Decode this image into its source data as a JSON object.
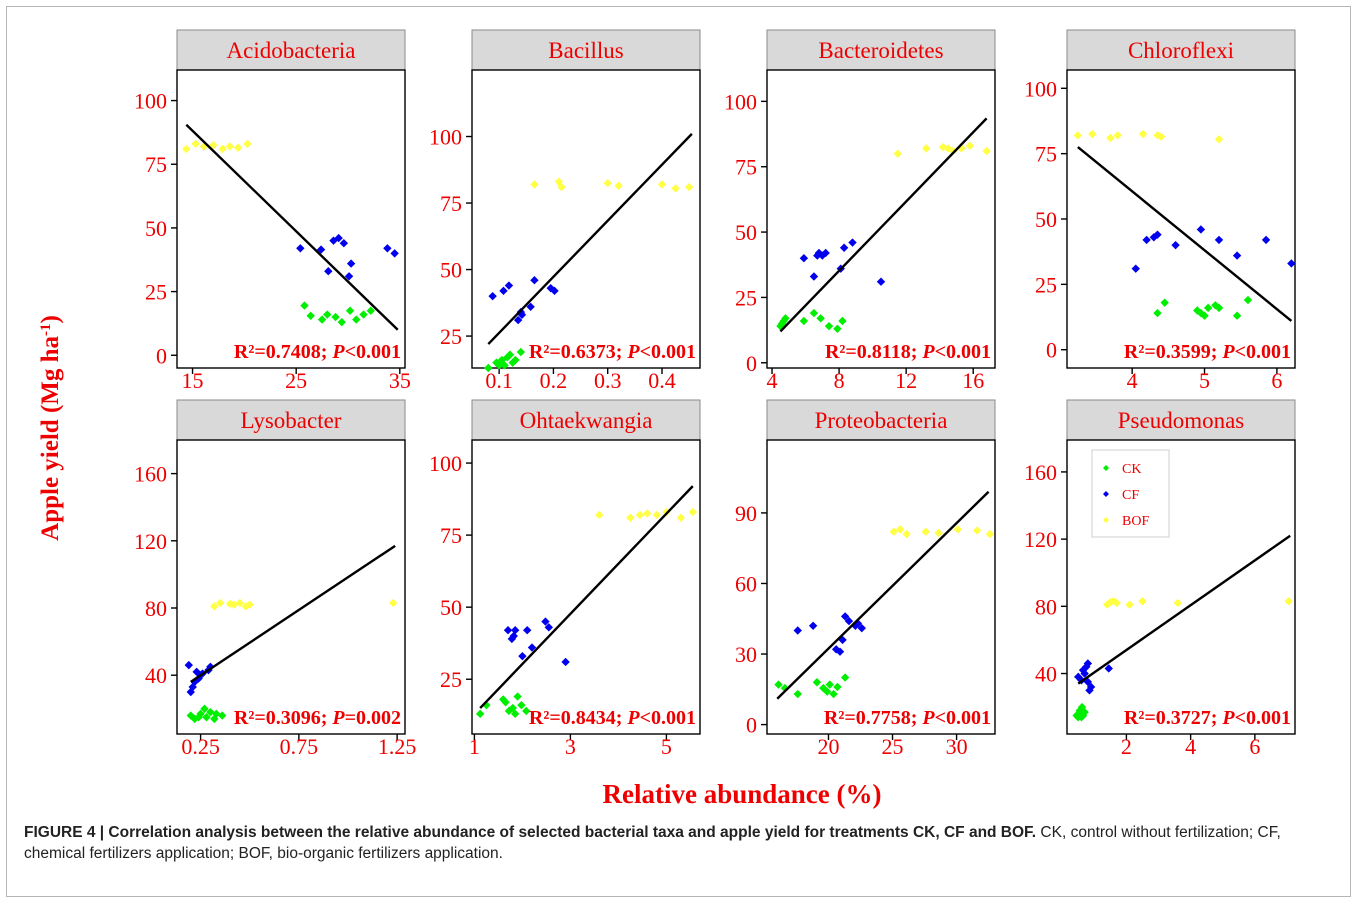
{
  "figure": {
    "y_axis_label_main": "Apple yield (Mg ha",
    "y_axis_label_sup": "-1",
    "y_axis_label_close": ")",
    "x_axis_label": "Relative abundance (%)",
    "caption_bold": "FIGURE 4 | Correlation analysis between the relative abundance of selected bacterial taxa and apple yield for treatments CK, CF and BOF.",
    "caption_text": " CK, control without fertilization; CF, chemical fertilizers application; BOF, bio-organic fertilizers application."
  },
  "colors": {
    "CK": "#00ee00",
    "CF": "#0000ee",
    "BOF": "#ffff44",
    "text_red": "#ee0000",
    "strip": "#d9d9d9",
    "line": "#000000"
  },
  "chart_data": [
    {
      "type": "scatter",
      "title": "Acidobacteria",
      "xlim": [
        13.5,
        35.5
      ],
      "ylim": [
        -5,
        112
      ],
      "xticks": [
        15,
        25,
        35
      ],
      "xtick_labels": [
        "15",
        "25",
        "35"
      ],
      "yticks": [
        0,
        25,
        50,
        75,
        100
      ],
      "ytick_labels": [
        "0",
        "25",
        "50",
        "75",
        "100"
      ],
      "r2": "R²=0.7408;",
      "p_label": "P",
      "p_value": "<0.001",
      "fit": {
        "x": [
          14.4,
          34.8
        ],
        "y": [
          90.5,
          10
        ]
      },
      "series": [
        {
          "name": "CK",
          "x": [
            25.8,
            26.4,
            27.5,
            28.0,
            28.8,
            29.4,
            30.2,
            30.8,
            31.5,
            32.2
          ],
          "y": [
            19.5,
            15.5,
            14,
            16,
            15,
            13,
            17.5,
            14,
            16,
            17.5
          ]
        },
        {
          "name": "CF",
          "x": [
            25.4,
            27.4,
            28.1,
            28.6,
            29.1,
            29.6,
            30.3,
            33.8,
            34.5,
            30.1
          ],
          "y": [
            42,
            41.5,
            33,
            45,
            46,
            44,
            36,
            42,
            40,
            31
          ]
        },
        {
          "name": "BOF",
          "x": [
            14.4,
            15.3,
            16.1,
            17.0,
            17.9,
            18.6,
            19.4,
            20.3
          ],
          "y": [
            81,
            83,
            82,
            82.5,
            81,
            82,
            81.5,
            83
          ]
        }
      ]
    },
    {
      "type": "scatter",
      "title": "Bacillus",
      "xlim": [
        0.05,
        0.47
      ],
      "ylim": [
        13,
        125
      ],
      "xticks": [
        0.1,
        0.2,
        0.3,
        0.4
      ],
      "xtick_labels": [
        "0.1",
        "0.2",
        "0.3",
        "0.4"
      ],
      "yticks": [
        25,
        50,
        75,
        100
      ],
      "ytick_labels": [
        "25",
        "50",
        "75",
        "100"
      ],
      "r2": "R²=0.6373;",
      "p_label": "P",
      "p_value": "<0.001",
      "fit": {
        "x": [
          0.08,
          0.455
        ],
        "y": [
          22,
          101
        ]
      },
      "series": [
        {
          "name": "CK",
          "x": [
            0.08,
            0.095,
            0.105,
            0.11,
            0.115,
            0.12,
            0.13,
            0.14,
            0.1,
            0.125
          ],
          "y": [
            13,
            15,
            16,
            14,
            17,
            18,
            16,
            19,
            14,
            15
          ]
        },
        {
          "name": "CF",
          "x": [
            0.088,
            0.108,
            0.118,
            0.135,
            0.142,
            0.158,
            0.165,
            0.195,
            0.202,
            0.14
          ],
          "y": [
            40,
            42,
            44,
            31,
            33,
            36,
            46,
            43,
            42,
            34
          ]
        },
        {
          "name": "BOF",
          "x": [
            0.165,
            0.21,
            0.215,
            0.3,
            0.32,
            0.4,
            0.425,
            0.45
          ],
          "y": [
            82,
            83,
            81,
            82.5,
            81.5,
            82,
            80.5,
            81
          ]
        }
      ]
    },
    {
      "type": "scatter",
      "title": "Bacteroidetes",
      "xlim": [
        3.7,
        17.3
      ],
      "ylim": [
        -2,
        112
      ],
      "xticks": [
        4,
        8,
        12,
        16
      ],
      "xtick_labels": [
        "4",
        "8",
        "12",
        "16"
      ],
      "yticks": [
        0,
        25,
        50,
        75,
        100
      ],
      "ytick_labels": [
        "0",
        "25",
        "50",
        "75",
        "100"
      ],
      "r2": "R²=0.8118;",
      "p_label": "P",
      "p_value": "<0.001",
      "fit": {
        "x": [
          4.5,
          16.8
        ],
        "y": [
          12,
          93.5
        ]
      },
      "series": [
        {
          "name": "CK",
          "x": [
            4.5,
            4.7,
            4.8,
            5.9,
            6.5,
            6.9,
            7.4,
            7.9,
            8.2,
            4.6
          ],
          "y": [
            14,
            16,
            17,
            16,
            19,
            17,
            14,
            13,
            16,
            15
          ]
        },
        {
          "name": "CF",
          "x": [
            5.9,
            6.5,
            6.8,
            7.2,
            8.1,
            8.8,
            10.5,
            8.3,
            6.7,
            7.0
          ],
          "y": [
            40,
            33,
            42,
            42,
            36,
            46,
            31,
            44,
            41,
            41
          ]
        },
        {
          "name": "BOF",
          "x": [
            11.5,
            13.2,
            14.2,
            14.8,
            15.3,
            15.8,
            16.8,
            14.5
          ],
          "y": [
            80,
            82,
            82.5,
            81,
            82,
            83,
            81,
            82
          ]
        }
      ]
    },
    {
      "type": "scatter",
      "title": "Chloroflexi",
      "xlim": [
        3.1,
        6.25
      ],
      "ylim": [
        -7,
        107
      ],
      "xticks": [
        4,
        5,
        6
      ],
      "xtick_labels": [
        "4",
        "5",
        "6"
      ],
      "yticks": [
        0,
        25,
        50,
        75,
        100
      ],
      "ytick_labels": [
        "0",
        "25",
        "50",
        "75",
        "100"
      ],
      "r2": "R²=0.3599;",
      "p_label": "P",
      "p_value": "<0.001",
      "fit": {
        "x": [
          3.25,
          6.2
        ],
        "y": [
          77.5,
          11
        ]
      },
      "series": [
        {
          "name": "CK",
          "x": [
            4.35,
            4.45,
            4.9,
            5.0,
            5.05,
            5.15,
            5.2,
            5.45,
            5.6,
            4.95
          ],
          "y": [
            14,
            18,
            15,
            13,
            16,
            17,
            16,
            13,
            19,
            14
          ]
        },
        {
          "name": "CF",
          "x": [
            4.05,
            4.2,
            4.35,
            4.6,
            4.95,
            5.2,
            5.45,
            5.85,
            6.2,
            4.3
          ],
          "y": [
            31,
            42,
            44,
            40,
            46,
            42,
            36,
            42,
            33,
            43
          ]
        },
        {
          "name": "BOF",
          "x": [
            3.25,
            3.45,
            3.7,
            3.8,
            4.15,
            4.35,
            4.4,
            5.2
          ],
          "y": [
            82,
            82.5,
            81,
            82,
            82.5,
            82,
            81.5,
            80.5
          ]
        }
      ]
    },
    {
      "type": "scatter",
      "title": "Lysobacter",
      "xlim": [
        0.13,
        1.29
      ],
      "ylim": [
        5,
        180
      ],
      "xticks": [
        0.25,
        0.75,
        1.25
      ],
      "xtick_labels": [
        "0.25",
        "0.75",
        "1.25"
      ],
      "yticks": [
        40,
        80,
        120,
        160
      ],
      "ytick_labels": [
        "40",
        "80",
        "120",
        "160"
      ],
      "r2": "R²=0.3096;",
      "p_label": "P",
      "p_value": "=0.002",
      "fit": {
        "x": [
          0.2,
          1.24
        ],
        "y": [
          36,
          117
        ]
      },
      "series": [
        {
          "name": "CK",
          "x": [
            0.2,
            0.22,
            0.25,
            0.27,
            0.28,
            0.3,
            0.32,
            0.33,
            0.36,
            0.24
          ],
          "y": [
            16,
            14,
            17,
            20,
            15,
            18,
            14,
            17,
            16,
            15
          ]
        },
        {
          "name": "CF",
          "x": [
            0.19,
            0.2,
            0.21,
            0.23,
            0.24,
            0.25,
            0.29,
            0.3,
            0.22,
            0.26
          ],
          "y": [
            46,
            30,
            33,
            42,
            38,
            40,
            43,
            45,
            36,
            41
          ]
        },
        {
          "name": "BOF",
          "x": [
            0.32,
            0.35,
            0.4,
            0.45,
            0.48,
            0.5,
            1.23,
            0.42
          ],
          "y": [
            81,
            83,
            82.5,
            83,
            81,
            82,
            83,
            82
          ]
        }
      ]
    },
    {
      "type": "scatter",
      "title": "Ohtaekwangia",
      "xlim": [
        0.95,
        5.7
      ],
      "ylim": [
        6,
        108
      ],
      "xticks": [
        1,
        3,
        5
      ],
      "xtick_labels": [
        "1",
        "3",
        "5"
      ],
      "yticks": [
        25,
        50,
        75,
        100
      ],
      "ytick_labels": [
        "25",
        "50",
        "75",
        "100"
      ],
      "r2": "R²=0.8434;",
      "p_label": "P",
      "p_value": "<0.001",
      "fit": {
        "x": [
          1.12,
          5.55
        ],
        "y": [
          15,
          92
        ]
      },
      "series": [
        {
          "name": "CK",
          "x": [
            1.12,
            1.25,
            1.65,
            1.72,
            1.8,
            1.9,
            1.98,
            2.08,
            1.85,
            1.6
          ],
          "y": [
            13,
            16,
            17,
            14,
            15,
            19,
            16,
            14,
            13,
            18
          ]
        },
        {
          "name": "CF",
          "x": [
            1.7,
            1.78,
            1.85,
            2.0,
            2.1,
            2.48,
            2.55,
            2.9,
            1.82,
            2.2
          ],
          "y": [
            42,
            39,
            42,
            33,
            42,
            45,
            43,
            31,
            40,
            36
          ]
        },
        {
          "name": "BOF",
          "x": [
            3.6,
            4.25,
            4.45,
            4.6,
            4.8,
            5.0,
            5.3,
            5.55
          ],
          "y": [
            82,
            81,
            82,
            82.5,
            82,
            83,
            81,
            83
          ]
        }
      ]
    },
    {
      "type": "scatter",
      "title": "Proteobacteria",
      "xlim": [
        15.2,
        33.0
      ],
      "ylim": [
        -4,
        121
      ],
      "xticks": [
        20,
        25,
        30
      ],
      "xtick_labels": [
        "20",
        "25",
        "30"
      ],
      "yticks": [
        0,
        30,
        60,
        90
      ],
      "ytick_labels": [
        "0",
        "30",
        "60",
        "90"
      ],
      "r2": "R²=0.7758;",
      "p_label": "P",
      "p_value": "<0.001",
      "fit": {
        "x": [
          16.0,
          32.5
        ],
        "y": [
          11,
          99
        ]
      },
      "series": [
        {
          "name": "CK",
          "x": [
            16.1,
            16.6,
            17.6,
            19.1,
            19.6,
            19.9,
            20.4,
            20.7,
            21.3,
            20.1
          ],
          "y": [
            17,
            15.5,
            13,
            18,
            15.5,
            14,
            13,
            16,
            20,
            17
          ]
        },
        {
          "name": "CF",
          "x": [
            17.6,
            18.8,
            20.6,
            21.1,
            21.6,
            22.1,
            22.6,
            20.9,
            21.3,
            22.3
          ],
          "y": [
            40,
            42,
            32,
            36,
            44,
            42,
            41,
            31,
            46,
            43
          ]
        },
        {
          "name": "BOF",
          "x": [
            25.1,
            25.6,
            26.1,
            27.6,
            28.6,
            30.1,
            31.6,
            32.6
          ],
          "y": [
            82,
            83,
            81,
            82,
            81.5,
            83,
            82.5,
            81
          ]
        }
      ]
    },
    {
      "type": "scatter",
      "title": "Pseudomonas",
      "xlim": [
        0.15,
        7.25
      ],
      "ylim": [
        4,
        179
      ],
      "xticks": [
        2,
        4,
        6
      ],
      "xtick_labels": [
        "2",
        "4",
        "6"
      ],
      "yticks": [
        40,
        80,
        120,
        160
      ],
      "ytick_labels": [
        "40",
        "80",
        "120",
        "160"
      ],
      "r2": "R²=0.3727;",
      "p_label": "P",
      "p_value": "<0.001",
      "fit": {
        "x": [
          0.5,
          7.1
        ],
        "y": [
          34,
          122
        ]
      },
      "series": [
        {
          "name": "CK",
          "x": [
            0.45,
            0.5,
            0.55,
            0.6,
            0.62,
            0.65,
            0.7,
            0.55,
            0.5,
            0.6
          ],
          "y": [
            15,
            14,
            17,
            16,
            20,
            15,
            17,
            18,
            16,
            14
          ]
        },
        {
          "name": "CF",
          "x": [
            0.5,
            0.6,
            0.7,
            0.75,
            0.8,
            0.85,
            0.9,
            1.45,
            0.65,
            0.8
          ],
          "y": [
            38,
            36,
            40,
            44,
            46,
            30,
            32,
            43,
            42,
            35
          ]
        },
        {
          "name": "BOF",
          "x": [
            1.4,
            1.6,
            1.7,
            2.1,
            2.5,
            3.6,
            7.05,
            1.5
          ],
          "y": [
            81,
            83,
            82,
            81,
            83,
            82,
            83,
            82.5
          ]
        }
      ],
      "legend": {
        "position": "top-left",
        "entries": [
          "CK",
          "CF",
          "BOF"
        ]
      }
    }
  ]
}
